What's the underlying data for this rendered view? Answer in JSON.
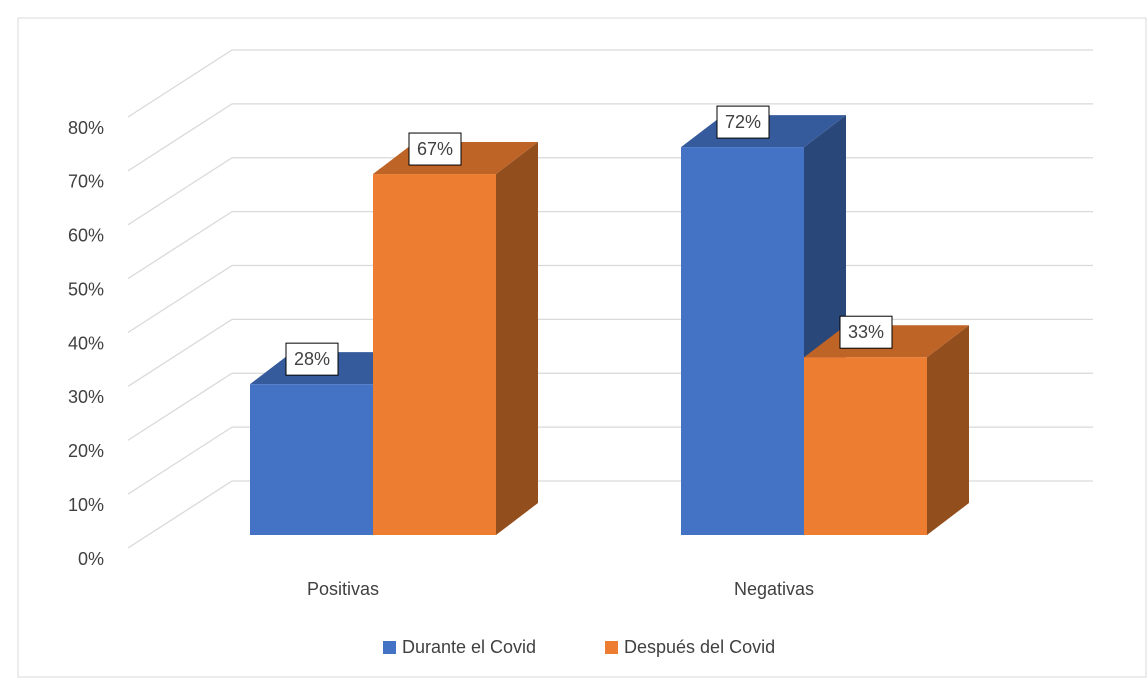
{
  "chart_data": {
    "type": "bar3d",
    "categories": [
      "Positivas",
      "Negativas"
    ],
    "series": [
      {
        "name": "Durante el Covid",
        "color": "#4472c4",
        "values": [
          28,
          72
        ],
        "value_labels": [
          "28%",
          "72%"
        ]
      },
      {
        "name": "Después del Covid",
        "color": "#ed7d31",
        "values": [
          67,
          33
        ],
        "value_labels": [
          "67%",
          "33%"
        ]
      }
    ],
    "ylim": [
      0,
      80
    ],
    "yticks": [
      {
        "value": 0,
        "label": "0%"
      },
      {
        "value": 10,
        "label": "10%"
      },
      {
        "value": 20,
        "label": "20%"
      },
      {
        "value": 30,
        "label": "30%"
      },
      {
        "value": 40,
        "label": "40%"
      },
      {
        "value": 50,
        "label": "50%"
      },
      {
        "value": 60,
        "label": "60%"
      },
      {
        "value": 70,
        "label": "70%"
      },
      {
        "value": 80,
        "label": "80%"
      }
    ],
    "grid": true,
    "legend": "bottom"
  }
}
